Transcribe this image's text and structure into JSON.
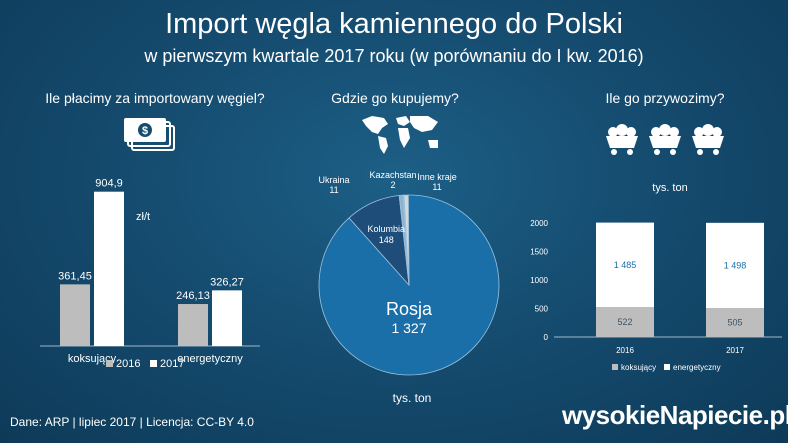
{
  "header": {
    "title": "Import węgla kamiennego do Polski",
    "subtitle": "w pierwszym kwartale 2017 roku (w porównaniu do I kw. 2016)"
  },
  "sections": {
    "price_title": "Ile płacimy za importowany węgiel?",
    "buy_title": "Gdzie go kupujemy?",
    "volume_title": "Ile go przywozimy?"
  },
  "chart_data": [
    {
      "type": "bar",
      "title": "Ile płacimy za importowany węgiel?",
      "unit": "zł/t",
      "categories": [
        "koksujący",
        "energetyczny"
      ],
      "series": [
        {
          "name": "2016",
          "values": [
            361.45,
            246.13
          ],
          "labels": [
            "361,45",
            "246,13"
          ],
          "color": "#bdbdbd"
        },
        {
          "name": "2017",
          "values": [
            904.9,
            326.27
          ],
          "labels": [
            "904,9",
            "326,27"
          ],
          "color": "#ffffff"
        }
      ],
      "ylim": [
        0,
        950
      ]
    },
    {
      "type": "pie",
      "title": "Gdzie go kupujemy?",
      "unit": "tys. ton",
      "slices": [
        {
          "name": "Rosja",
          "value": 1327,
          "label": "1 327",
          "color": "#1a6fa8"
        },
        {
          "name": "Kolumbia",
          "value": 148,
          "label": "148",
          "color": "#1f4d7a"
        },
        {
          "name": "Ukraina",
          "value": 11,
          "label": "11",
          "color": "#8fb2d0"
        },
        {
          "name": "Kazachstan",
          "value": 2,
          "label": "2",
          "color": "#b0b0b0"
        },
        {
          "name": "Inne kraje",
          "value": 11,
          "label": "11",
          "color": "#d8d8d8"
        }
      ]
    },
    {
      "type": "bar",
      "title": "Ile go przywozimy?",
      "unit": "tys. ton",
      "stacked": true,
      "categories": [
        "2016",
        "2017"
      ],
      "series": [
        {
          "name": "koksujący",
          "values": [
            522,
            505
          ],
          "labels": [
            "522",
            "505"
          ],
          "color": "#bdbdbd"
        },
        {
          "name": "energetyczny",
          "values": [
            1485,
            1498
          ],
          "labels": [
            "1 485",
            "1 498"
          ],
          "color": "#ffffff"
        }
      ],
      "ylim": [
        0,
        2000
      ],
      "yticks": [
        "0",
        "500",
        "1000",
        "1500",
        "2000"
      ],
      "grid": false,
      "legend": "bottom"
    }
  ],
  "footer": {
    "credits": "Dane: ARP  |  lipiec 2017  |  Licencja: CC-BY 4.0",
    "brand": "wysokieNapiecie.pl"
  },
  "icons": [
    "money-icon",
    "world-map-icon",
    "coal-cart-icon"
  ]
}
